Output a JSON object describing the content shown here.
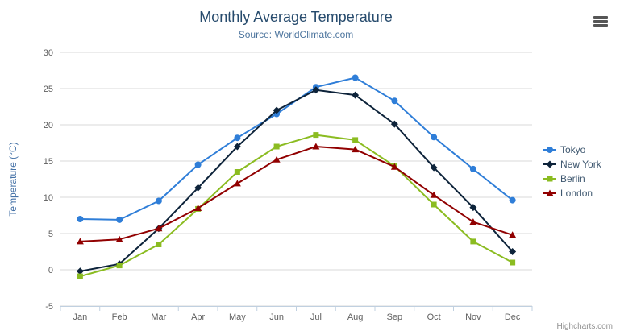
{
  "credits": "Highcharts.com",
  "chart_data": {
    "type": "line",
    "title": "Monthly Average Temperature",
    "subtitle": "Source: WorldClimate.com",
    "categories": [
      "Jan",
      "Feb",
      "Mar",
      "Apr",
      "May",
      "Jun",
      "Jul",
      "Aug",
      "Sep",
      "Oct",
      "Nov",
      "Dec"
    ],
    "xlabel": "",
    "ylabel": "Temperature (°C)",
    "ylim": [
      -5,
      30
    ],
    "ytick_interval": 5,
    "grid": true,
    "legend_position": "right",
    "series": [
      {
        "name": "Tokyo",
        "color": "#2f7ed8",
        "marker": "circle",
        "values": [
          7.0,
          6.9,
          9.5,
          14.5,
          18.2,
          21.5,
          25.2,
          26.5,
          23.3,
          18.3,
          13.9,
          9.6
        ]
      },
      {
        "name": "New York",
        "color": "#0d233a",
        "marker": "diamond",
        "values": [
          -0.2,
          0.8,
          5.7,
          11.3,
          17.0,
          22.0,
          24.8,
          24.1,
          20.1,
          14.1,
          8.6,
          2.5
        ]
      },
      {
        "name": "Berlin",
        "color": "#8bbc21",
        "marker": "square",
        "values": [
          -0.9,
          0.6,
          3.5,
          8.4,
          13.5,
          17.0,
          18.6,
          17.9,
          14.3,
          9.0,
          3.9,
          1.0
        ]
      },
      {
        "name": "London",
        "color": "#910000",
        "marker": "triangle",
        "values": [
          3.9,
          4.2,
          5.7,
          8.5,
          11.9,
          15.2,
          17.0,
          16.6,
          14.2,
          10.3,
          6.6,
          4.8
        ]
      }
    ]
  }
}
